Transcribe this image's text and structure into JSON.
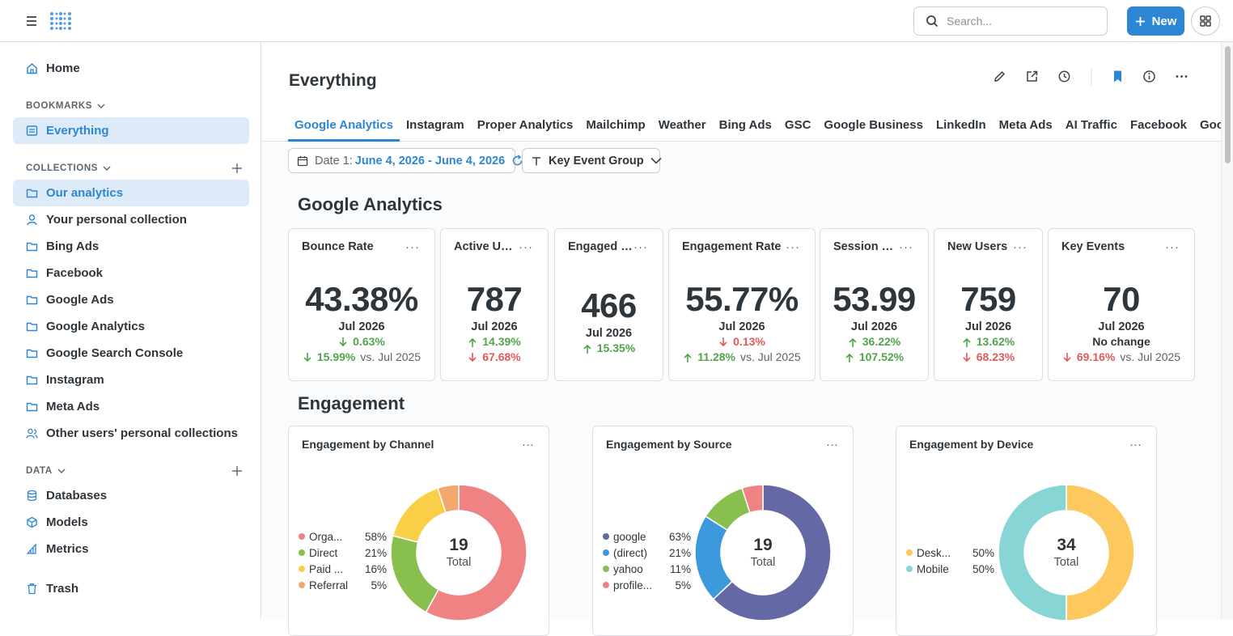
{
  "top": {
    "search_placeholder": "Search...",
    "new_label": "New"
  },
  "sidebar": {
    "home": "Home",
    "bookmarks_heading": "BOOKMARKS",
    "bookmark_items": [
      "Everything"
    ],
    "collections_heading": "COLLECTIONS",
    "collection_items": [
      "Our analytics",
      "Your personal collection",
      "Bing Ads",
      "Facebook",
      "Google Ads",
      "Google Analytics",
      "Google Search Console",
      "Instagram",
      "Meta Ads",
      "Other users' personal collections"
    ],
    "data_heading": "DATA",
    "data_items": [
      "Databases",
      "Models",
      "Metrics"
    ],
    "trash": "Trash"
  },
  "page": {
    "title": "Everything",
    "tabs": [
      "Google Analytics",
      "Instagram",
      "Proper Analytics",
      "Mailchimp",
      "Weather",
      "Bing Ads",
      "GSC",
      "Google Business",
      "LinkedIn",
      "Meta Ads",
      "AI Traffic",
      "Facebook",
      "Google Ads"
    ],
    "filter_date_label": "Date 1:",
    "filter_date_value": "June 4, 2026 - June 4, 2026",
    "filter_group": "Key Event Group",
    "section1": "Google Analytics",
    "section2": "Engagement"
  },
  "colors": {
    "accent": "#2d86d4",
    "up": "#51a44b",
    "down": "#e05a5a"
  },
  "metrics": [
    {
      "title": "Bounce Rate",
      "value": "43.38%",
      "period": "Jul 2026",
      "l1": {
        "dir": "down",
        "cls": "up",
        "pct": "0.63%",
        "vs": ""
      },
      "l2": {
        "dir": "down",
        "cls": "up",
        "pct": "15.99%",
        "vs": "vs. Jul 2025"
      }
    },
    {
      "title": "Active Users",
      "value": "787",
      "period": "Jul 2026",
      "l1": {
        "dir": "up",
        "cls": "up",
        "pct": "14.39%",
        "vs": ""
      },
      "l2": {
        "dir": "down",
        "cls": "down",
        "pct": "67.68%",
        "vs": ""
      }
    },
    {
      "title": "Engaged Se...",
      "value": "466",
      "period": "Jul 2026",
      "l1": {
        "dir": "up",
        "cls": "up",
        "pct": "15.35%",
        "vs": ""
      }
    },
    {
      "title": "Engagement Rate",
      "value": "55.77%",
      "period": "Jul 2026",
      "l1": {
        "dir": "down",
        "cls": "down",
        "pct": "0.13%",
        "vs": ""
      },
      "l2": {
        "dir": "up",
        "cls": "up",
        "pct": "11.28%",
        "vs": "vs. Jul 2025"
      }
    },
    {
      "title": "Session Du...",
      "value": "53.99",
      "period": "Jul 2026",
      "l1": {
        "dir": "up",
        "cls": "up",
        "pct": "36.22%",
        "vs": ""
      },
      "l2": {
        "dir": "up",
        "cls": "up",
        "pct": "107.52%",
        "vs": ""
      }
    },
    {
      "title": "New Users",
      "value": "759",
      "period": "Jul 2026",
      "l1": {
        "dir": "up",
        "cls": "up",
        "pct": "13.62%",
        "vs": ""
      },
      "l2": {
        "dir": "down",
        "cls": "down",
        "pct": "68.23%",
        "vs": ""
      }
    },
    {
      "title": "Key Events",
      "value": "70",
      "period": "Jul 2026",
      "l1": {
        "dir": "",
        "cls": "",
        "pct": "No change",
        "vs": ""
      },
      "l2": {
        "dir": "down",
        "cls": "down",
        "pct": "69.16%",
        "vs": "vs. Jul 2025"
      }
    }
  ],
  "chart_data": [
    {
      "type": "pie",
      "title": "Engagement by Channel",
      "total": "19",
      "total_label": "Total",
      "slices": [
        {
          "label": "Orga...",
          "value": 58,
          "pct": "58%",
          "color": "#ef8282"
        },
        {
          "label": "Direct",
          "value": 21,
          "pct": "21%",
          "color": "#88bf4d"
        },
        {
          "label": "Paid ...",
          "value": 16,
          "pct": "16%",
          "color": "#f9cf48"
        },
        {
          "label": "Referral",
          "value": 5,
          "pct": "5%",
          "color": "#f2a86f"
        }
      ]
    },
    {
      "type": "pie",
      "title": "Engagement by Source",
      "total": "19",
      "total_label": "Total",
      "slices": [
        {
          "label": "google",
          "value": 63,
          "pct": "63%",
          "color": "#6469a6"
        },
        {
          "label": "(direct)",
          "value": 21,
          "pct": "21%",
          "color": "#3c99dc"
        },
        {
          "label": "yahoo",
          "value": 11,
          "pct": "11%",
          "color": "#88bf4d"
        },
        {
          "label": "profile...",
          "value": 5,
          "pct": "5%",
          "color": "#ef8282"
        }
      ]
    },
    {
      "type": "pie",
      "title": "Engagement by Device",
      "total": "34",
      "total_label": "Total",
      "slices": [
        {
          "label": "Desk...",
          "value": 50,
          "pct": "50%",
          "color": "#fdc85d"
        },
        {
          "label": "Mobile",
          "value": 50,
          "pct": "50%",
          "color": "#88d5d6"
        }
      ]
    }
  ]
}
